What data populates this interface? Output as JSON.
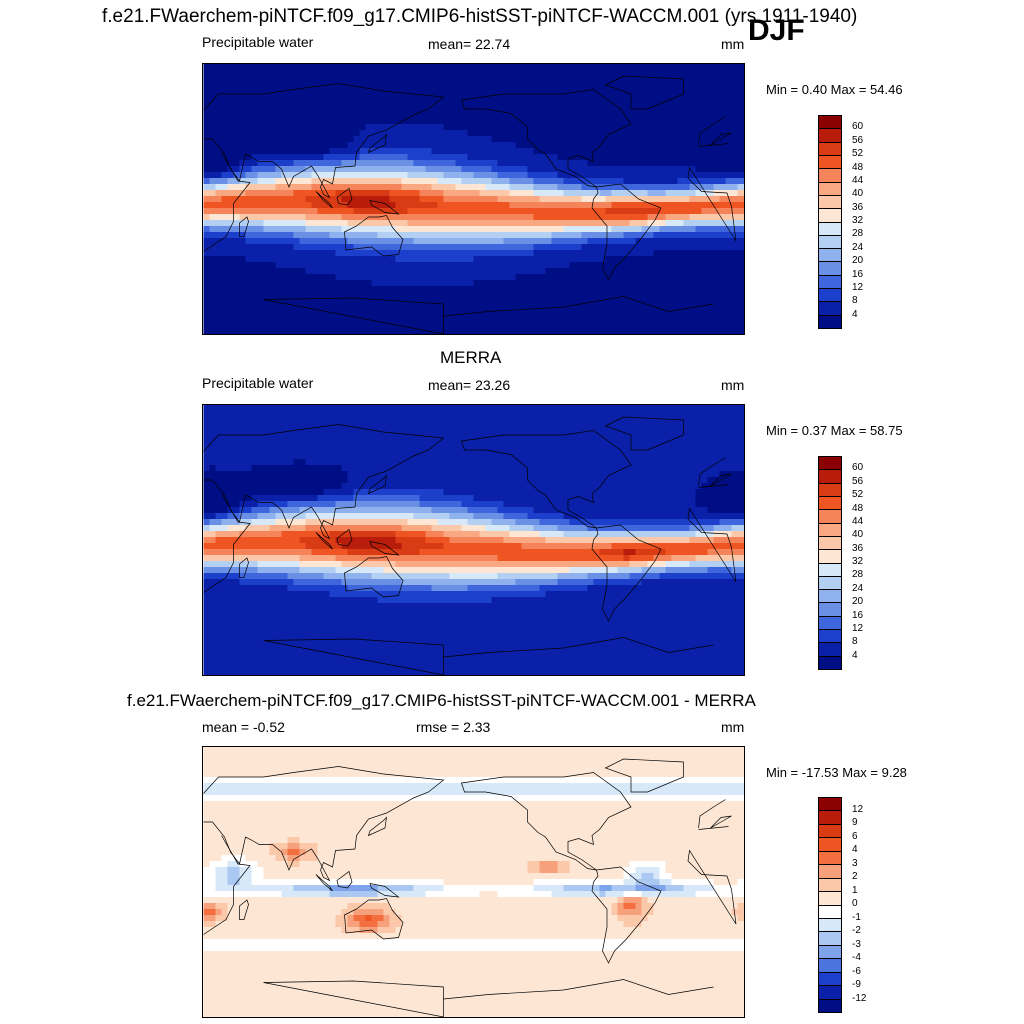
{
  "header": {
    "main_title": "f.e21.FWaerchem-piNTCF.f09_g17.CMIP6-histSST-piNTCF-WACCM.001 (yrs 1911-1940)",
    "season": "DJF"
  },
  "panels": [
    {
      "id": "model",
      "title": "",
      "left_label": "Precipitable water",
      "center_label": "mean=  22.74",
      "units": "mm",
      "min_max": "Min =   0.40 Max =  54.46",
      "colorbar": {
        "labels": [
          "60",
          "56",
          "52",
          "48",
          "44",
          "40",
          "36",
          "32",
          "28",
          "24",
          "20",
          "16",
          "12",
          "8",
          "4"
        ],
        "colors": [
          "#8b0000",
          "#b81d0c",
          "#d93b14",
          "#ee5522",
          "#f5845a",
          "#f9a882",
          "#fbc9aa",
          "#fde6d3",
          "#d7e8f8",
          "#b3d0f3",
          "#8fb2ee",
          "#6a90e6",
          "#3f66dd",
          "#1c3fcc",
          "#0a20a8",
          "#000e86"
        ],
        "mean": 22.74
      }
    },
    {
      "id": "obs",
      "title": "MERRA",
      "left_label": "Precipitable water",
      "center_label": "mean=  23.26",
      "units": "mm",
      "min_max": "Min =   0.37 Max =  58.75",
      "colorbar": {
        "labels": [
          "60",
          "56",
          "52",
          "48",
          "44",
          "40",
          "36",
          "32",
          "28",
          "24",
          "20",
          "16",
          "12",
          "8",
          "4"
        ],
        "colors": [
          "#8b0000",
          "#b81d0c",
          "#d93b14",
          "#ee5522",
          "#f5845a",
          "#f9a882",
          "#fbc9aa",
          "#fde6d3",
          "#d7e8f8",
          "#b3d0f3",
          "#8fb2ee",
          "#6a90e6",
          "#3f66dd",
          "#1c3fcc",
          "#0a20a8",
          "#000e86"
        ],
        "mean": 23.26
      }
    },
    {
      "id": "diff",
      "title": "f.e21.FWaerchem-piNTCF.f09_g17.CMIP6-histSST-piNTCF-WACCM.001 - MERRA",
      "left_label": "mean =  -0.52",
      "center_label": "rmse =   2.33",
      "units": "mm",
      "min_max": "Min = -17.53 Max =   9.28",
      "colorbar": {
        "labels": [
          "12",
          "9",
          "6",
          "4",
          "3",
          "2",
          "1",
          "0",
          "-1",
          "-2",
          "-3",
          "-4",
          "-6",
          "-9",
          "-12"
        ],
        "colors": [
          "#8b0000",
          "#b81d0c",
          "#d93b14",
          "#ee5522",
          "#f36f3f",
          "#f7a07c",
          "#fbc8aa",
          "#fde6d3",
          "#ffffff",
          "#d7e8f8",
          "#aac8f1",
          "#7fa3ea",
          "#4c74df",
          "#1c3fcc",
          "#0a20a8",
          "#000e86"
        ],
        "mean": -0.52
      }
    }
  ]
}
